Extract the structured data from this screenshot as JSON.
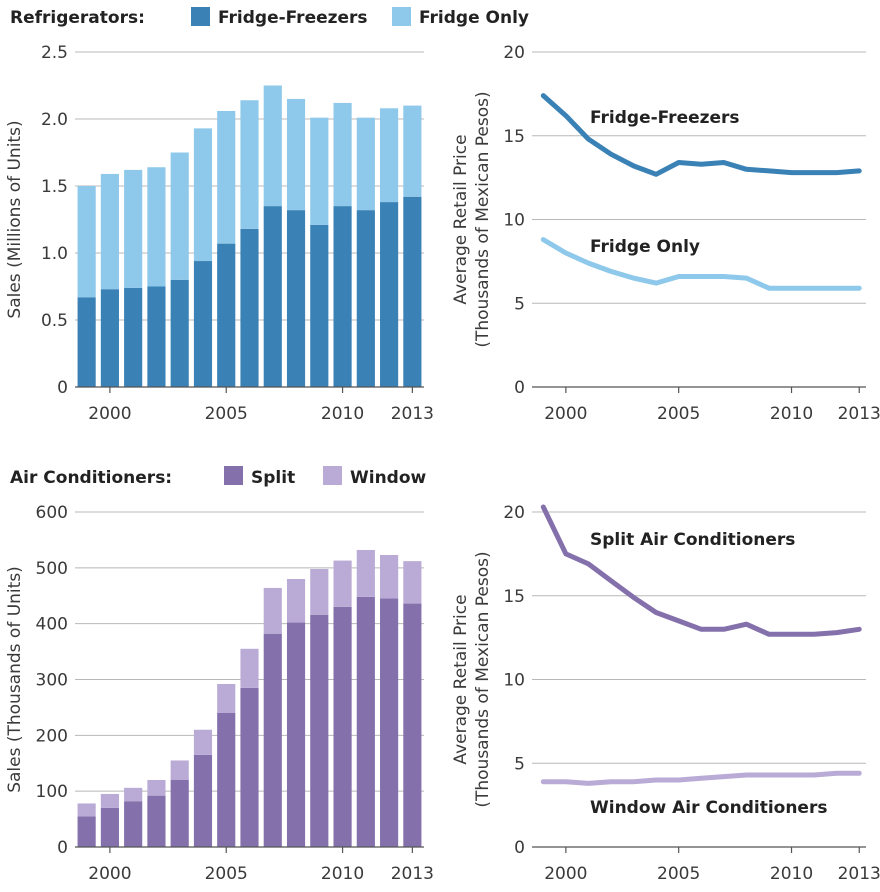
{
  "colors": {
    "fridge_freezers": "#3a81b6",
    "fridge_only": "#8ec8ea",
    "split": "#8470ab",
    "window": "#b9abd6",
    "grid": "#b8b8b8",
    "text": "#3a3a3a"
  },
  "legends": {
    "fridge": {
      "title": "Refrigerators:",
      "items": [
        {
          "label": "Fridge-Freezers",
          "color": "#3a81b6"
        },
        {
          "label": "Fridge Only",
          "color": "#8ec8ea"
        }
      ]
    },
    "ac": {
      "title": "Air Conditioners:",
      "items": [
        {
          "label": "Split",
          "color": "#8470ab"
        },
        {
          "label": "Window",
          "color": "#b9abd6"
        }
      ]
    }
  },
  "chart_data": [
    {
      "id": "fridge_sales",
      "type": "bar",
      "stacked": true,
      "ylabel": "Sales (Millions of Units)",
      "ylim": [
        0,
        2.5
      ],
      "yticks": [
        "0",
        "0.5",
        "1.0",
        "1.5",
        "2.0",
        "2.5"
      ],
      "xticks": [
        "2000",
        "2005",
        "2010",
        "2013"
      ],
      "grid": true,
      "categories": [
        1999,
        2000,
        2001,
        2002,
        2003,
        2004,
        2005,
        2006,
        2007,
        2008,
        2009,
        2010,
        2011,
        2012,
        2013
      ],
      "series": [
        {
          "name": "Fridge-Freezers",
          "values": [
            0.67,
            0.73,
            0.74,
            0.75,
            0.8,
            0.94,
            1.07,
            1.18,
            1.35,
            1.32,
            1.21,
            1.35,
            1.32,
            1.38,
            1.42
          ]
        },
        {
          "name": "Fridge Only",
          "values": [
            0.83,
            0.86,
            0.88,
            0.89,
            0.95,
            0.99,
            0.99,
            0.96,
            0.9,
            0.83,
            0.8,
            0.77,
            0.69,
            0.7,
            0.68
          ]
        }
      ]
    },
    {
      "id": "fridge_price",
      "type": "line",
      "ylabel": "Average Retail Price\n(Thousands of Mexican Pesos)",
      "ylim": [
        0,
        20
      ],
      "yticks": [
        "0",
        "5",
        "10",
        "15",
        "20"
      ],
      "xticks": [
        "2000",
        "2005",
        "2010",
        "2013"
      ],
      "xlim": [
        1999,
        2013
      ],
      "grid": true,
      "x": [
        1999,
        2000,
        2001,
        2002,
        2003,
        2004,
        2005,
        2006,
        2007,
        2008,
        2009,
        2010,
        2011,
        2012,
        2013
      ],
      "series": [
        {
          "name": "Fridge-Freezers",
          "values": [
            17.4,
            16.2,
            14.8,
            13.9,
            13.2,
            12.7,
            13.4,
            13.3,
            13.4,
            13.0,
            12.9,
            12.8,
            12.8,
            12.8,
            12.9
          ]
        },
        {
          "name": "Fridge Only",
          "values": [
            8.8,
            8.0,
            7.4,
            6.9,
            6.5,
            6.2,
            6.6,
            6.6,
            6.6,
            6.5,
            5.9,
            5.9,
            5.9,
            5.9,
            5.9
          ]
        }
      ]
    },
    {
      "id": "ac_sales",
      "type": "bar",
      "stacked": true,
      "ylabel": "Sales (Thousands of Units)",
      "ylim": [
        0,
        600
      ],
      "yticks": [
        "0",
        "100",
        "200",
        "300",
        "400",
        "500",
        "600"
      ],
      "xticks": [
        "2000",
        "2005",
        "2010",
        "2013"
      ],
      "grid": true,
      "categories": [
        1999,
        2000,
        2001,
        2002,
        2003,
        2004,
        2005,
        2006,
        2007,
        2008,
        2009,
        2010,
        2011,
        2012,
        2013
      ],
      "series": [
        {
          "name": "Split",
          "values": [
            55,
            70,
            82,
            92,
            120,
            165,
            240,
            285,
            382,
            402,
            416,
            430,
            448,
            445,
            436
          ]
        },
        {
          "name": "Window",
          "values": [
            23,
            25,
            24,
            28,
            35,
            45,
            52,
            70,
            82,
            78,
            82,
            83,
            84,
            78,
            76
          ]
        }
      ]
    },
    {
      "id": "ac_price",
      "type": "line",
      "ylabel": "Average Retail Price\n(Thousands of Mexican Pesos)",
      "ylim": [
        0,
        20
      ],
      "yticks": [
        "0",
        "5",
        "10",
        "15",
        "20"
      ],
      "xticks": [
        "2000",
        "2005",
        "2010",
        "2013"
      ],
      "xlim": [
        1999,
        2013
      ],
      "grid": true,
      "x": [
        1999,
        2000,
        2001,
        2002,
        2003,
        2004,
        2005,
        2006,
        2007,
        2008,
        2009,
        2010,
        2011,
        2012,
        2013
      ],
      "series": [
        {
          "name": "Split Air Conditioners",
          "values": [
            20.3,
            17.5,
            16.9,
            15.9,
            14.9,
            14.0,
            13.5,
            13.0,
            13.0,
            13.3,
            12.7,
            12.7,
            12.7,
            12.8,
            13.0
          ]
        },
        {
          "name": "Window Air Conditioners",
          "values": [
            3.9,
            3.9,
            3.8,
            3.9,
            3.9,
            4.0,
            4.0,
            4.1,
            4.2,
            4.3,
            4.3,
            4.3,
            4.3,
            4.4,
            4.4
          ]
        }
      ]
    }
  ]
}
